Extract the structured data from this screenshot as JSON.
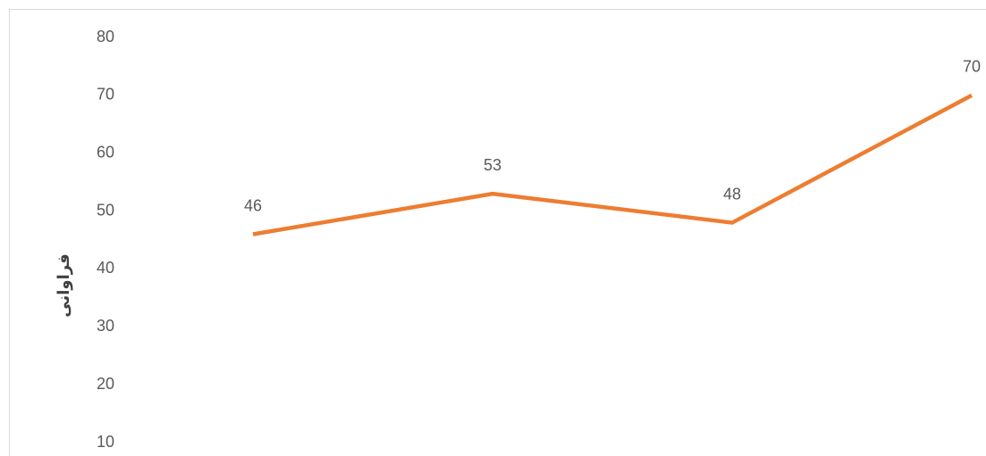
{
  "chart_data": {
    "type": "line",
    "y_label": "فراوانی",
    "categories": [
      null,
      null,
      null,
      null
    ],
    "series": [
      {
        "name": null,
        "color": "#ed7d31",
        "values": [
          46,
          53,
          48,
          70
        ]
      }
    ],
    "ylim": [
      0,
      80
    ],
    "yticks": [
      10,
      20,
      30,
      40,
      50,
      60,
      70,
      80
    ],
    "grid": false,
    "data_labels": true
  }
}
